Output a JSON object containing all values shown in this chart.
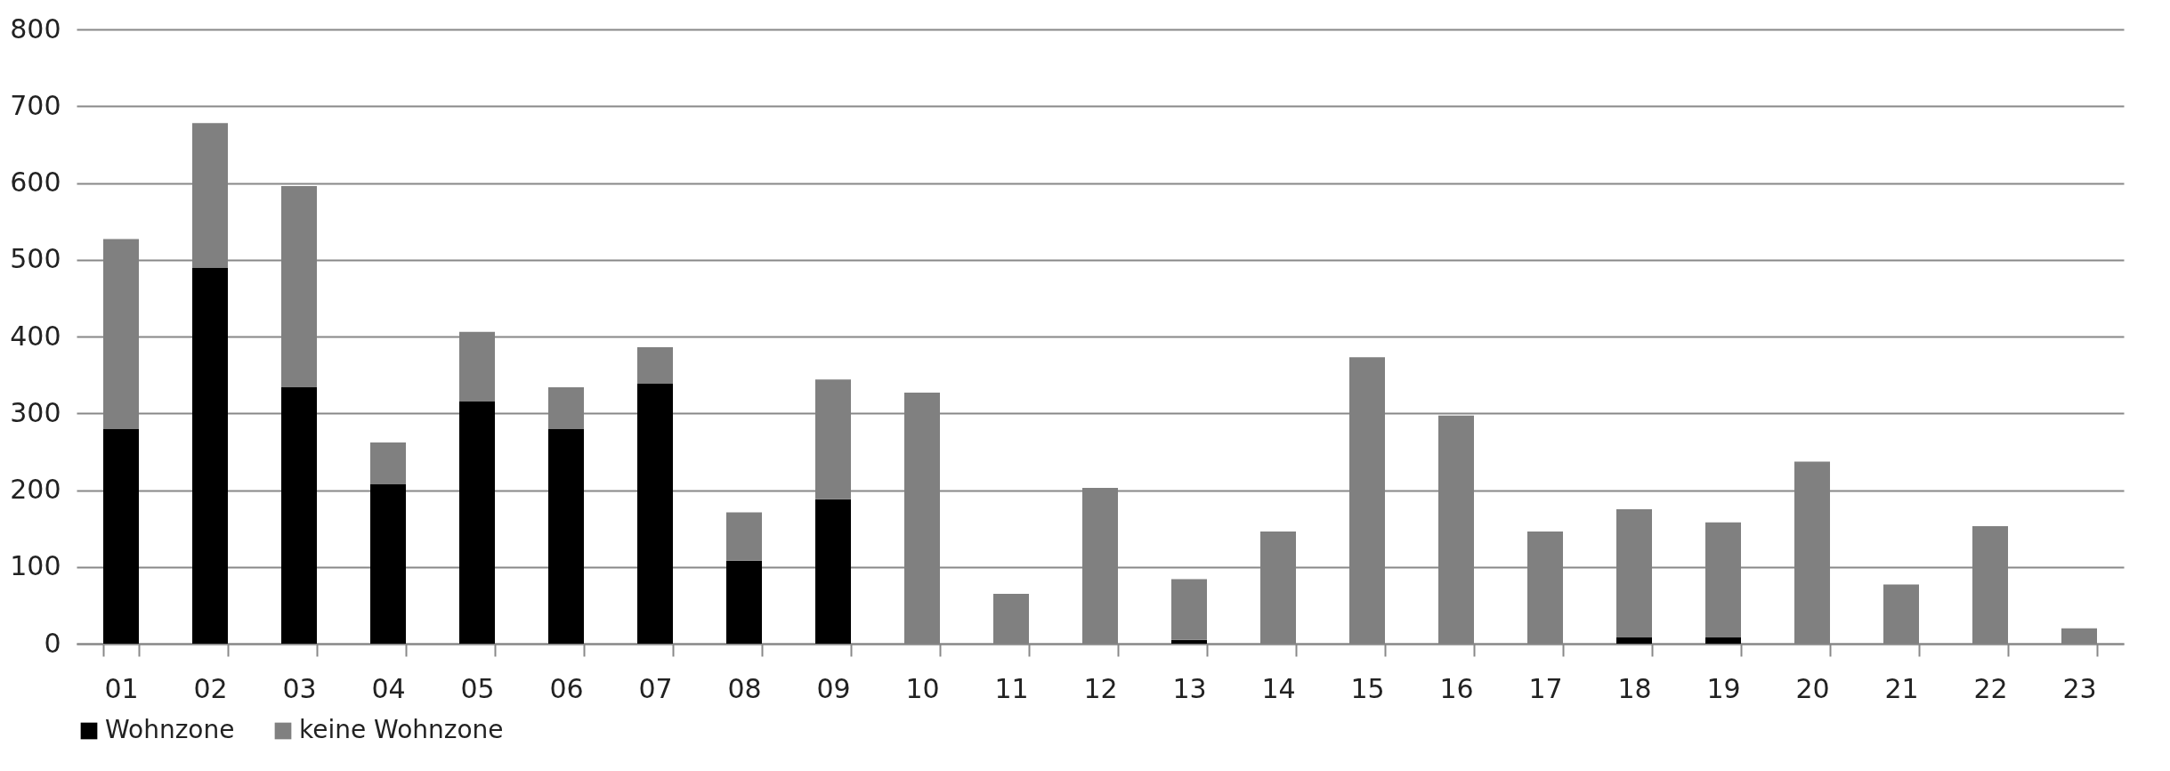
{
  "chart_data": {
    "type": "bar",
    "stacked": true,
    "categories": [
      "01",
      "02",
      "03",
      "04",
      "05",
      "06",
      "07",
      "08",
      "09",
      "10",
      "11",
      "12",
      "13",
      "14",
      "15",
      "16",
      "17",
      "18",
      "19",
      "20",
      "21",
      "22",
      "23"
    ],
    "series": [
      {
        "name": "Wohnzone",
        "color": "#000000",
        "values": [
          280,
          490,
          334,
          208,
          316,
          280,
          339,
          108,
          188,
          0,
          0,
          0,
          5,
          0,
          0,
          0,
          0,
          8,
          8,
          0,
          0,
          0,
          0
        ]
      },
      {
        "name": "keine Wohnzone",
        "color": "#808080",
        "values": [
          247,
          188,
          262,
          54,
          90,
          54,
          47,
          63,
          156,
          327,
          65,
          203,
          79,
          146,
          373,
          297,
          146,
          167,
          150,
          237,
          77,
          153,
          20
        ]
      }
    ],
    "ylim": [
      0,
      800
    ],
    "yticks": [
      0,
      100,
      200,
      300,
      400,
      500,
      600,
      700,
      800
    ],
    "grid": "y",
    "legend": "bottom"
  }
}
